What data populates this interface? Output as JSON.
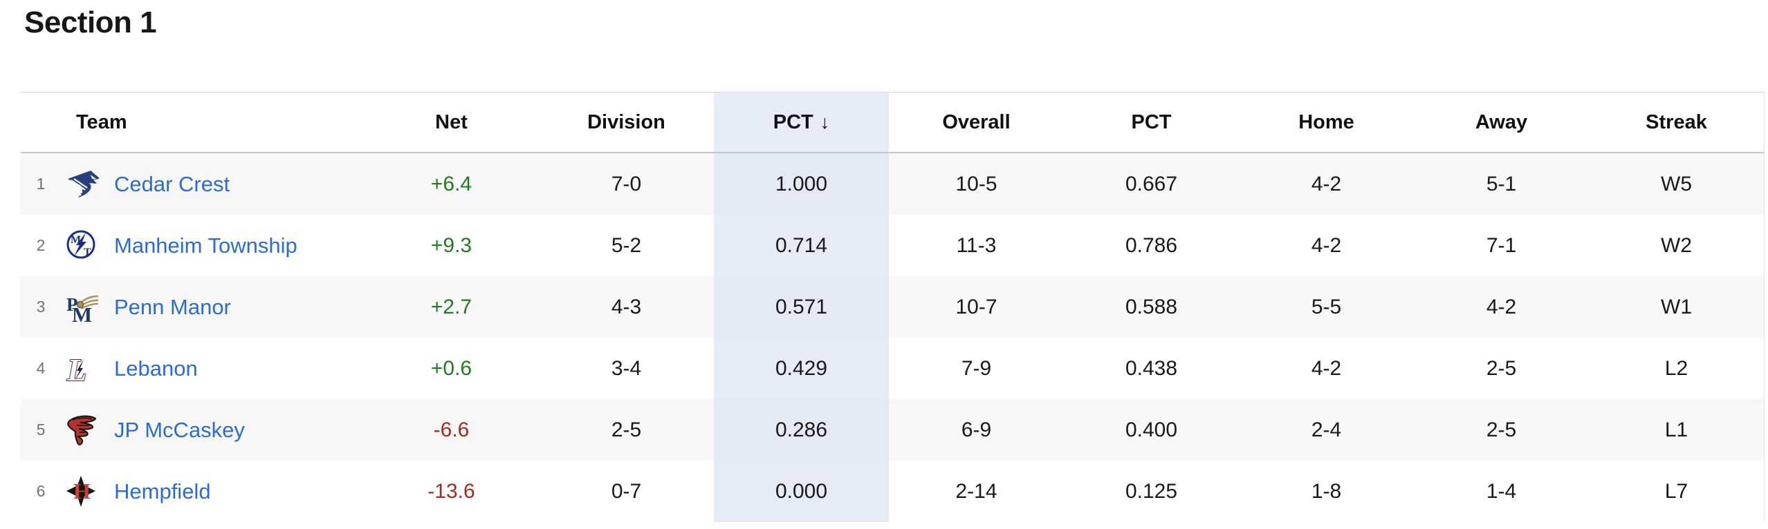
{
  "page": {
    "title": "Section 1"
  },
  "colors": {
    "highlight_column": "#e5ecf7",
    "row_alternate": "#f7f7f7",
    "team_link": "#2a6bd4",
    "net_positive": "#1e7b20",
    "net_negative": "#a32b1e"
  },
  "table": {
    "columns": [
      "Team",
      "Net",
      "Division",
      "PCT",
      "Overall",
      "PCT",
      "Home",
      "Away",
      "Streak"
    ],
    "sort": {
      "column": "PCT",
      "direction": "desc",
      "arrow": "↓"
    },
    "rows": [
      {
        "rank": "1",
        "team": "Cedar Crest",
        "logo": "cedar-crest-falcon-logo",
        "net": "+6.4",
        "division": "7-0",
        "division_pct": "1.000",
        "overall": "10-5",
        "overall_pct": "0.667",
        "home": "4-2",
        "away": "5-1",
        "streak": "W5"
      },
      {
        "rank": "2",
        "team": "Manheim Township",
        "logo": "manheim-township-mt-logo",
        "net": "+9.3",
        "division": "5-2",
        "division_pct": "0.714",
        "overall": "11-3",
        "overall_pct": "0.786",
        "home": "4-2",
        "away": "7-1",
        "streak": "W2"
      },
      {
        "rank": "3",
        "team": "Penn Manor",
        "logo": "penn-manor-pm-comet-logo",
        "net": "+2.7",
        "division": "4-3",
        "division_pct": "0.571",
        "overall": "10-7",
        "overall_pct": "0.588",
        "home": "5-5",
        "away": "4-2",
        "streak": "W1"
      },
      {
        "rank": "4",
        "team": "Lebanon",
        "logo": "lebanon-l-bolt-logo",
        "net": "+0.6",
        "division": "3-4",
        "division_pct": "0.429",
        "overall": "7-9",
        "overall_pct": "0.438",
        "home": "4-2",
        "away": "2-5",
        "streak": "L2"
      },
      {
        "rank": "5",
        "team": "JP McCaskey",
        "logo": "jp-mccaskey-tornado-logo",
        "net": "-6.6",
        "division": "2-5",
        "division_pct": "0.286",
        "overall": "6-9",
        "overall_pct": "0.400",
        "home": "2-4",
        "away": "2-5",
        "streak": "L1"
      },
      {
        "rank": "6",
        "team": "Hempfield",
        "logo": "hempfield-diamond-h-logo",
        "net": "-13.6",
        "division": "0-7",
        "division_pct": "0.000",
        "overall": "2-14",
        "overall_pct": "0.125",
        "home": "1-8",
        "away": "1-4",
        "streak": "L7"
      }
    ]
  }
}
